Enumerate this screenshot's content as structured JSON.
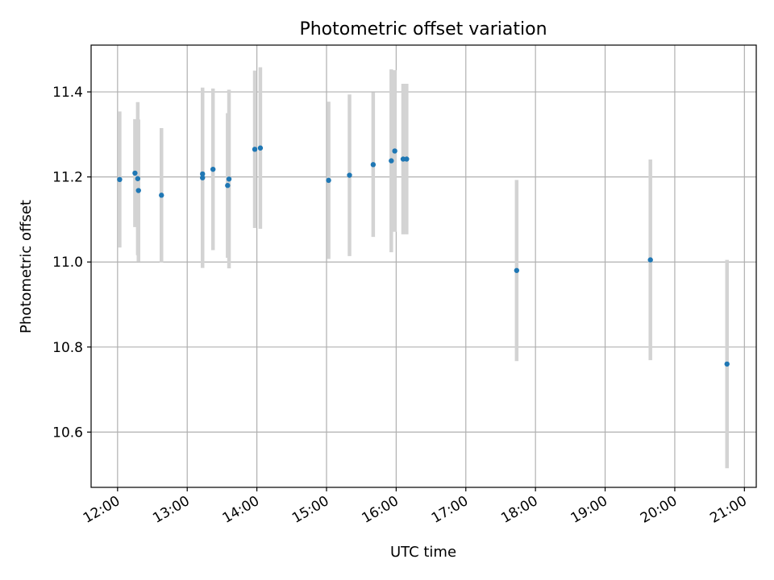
{
  "chart_data": {
    "type": "scatter",
    "title": "Photometric offset variation",
    "xlabel": "UTC time",
    "ylabel": "Photometric offset",
    "x_unit": "hours UTC",
    "xlim": [
      11.62,
      21.17
    ],
    "ylim": [
      10.47,
      11.51
    ],
    "x_ticks": [
      12,
      13,
      14,
      15,
      16,
      17,
      18,
      19,
      20,
      21
    ],
    "x_tick_labels": [
      "12:00",
      "13:00",
      "14:00",
      "15:00",
      "16:00",
      "17:00",
      "18:00",
      "19:00",
      "20:00",
      "21:00"
    ],
    "y_ticks": [
      10.6,
      10.8,
      11.0,
      11.2,
      11.4
    ],
    "y_tick_labels": [
      "10.6",
      "10.8",
      "11.0",
      "11.2",
      "11.4"
    ],
    "grid": true,
    "point_color": "#1f77b4",
    "errorbar_color": "#d3d3d3",
    "points": [
      {
        "x": 12.03,
        "y": 11.194,
        "err": 0.16
      },
      {
        "x": 12.25,
        "y": 11.209,
        "err": 0.127
      },
      {
        "x": 12.29,
        "y": 11.196,
        "err": 0.18
      },
      {
        "x": 12.3,
        "y": 11.168,
        "err": 0.167
      },
      {
        "x": 12.63,
        "y": 11.157,
        "err": 0.158
      },
      {
        "x": 13.22,
        "y": 11.198,
        "err": 0.212
      },
      {
        "x": 13.22,
        "y": 11.207,
        "err": 0.2
      },
      {
        "x": 13.37,
        "y": 11.218,
        "err": 0.19
      },
      {
        "x": 13.58,
        "y": 11.18,
        "err": 0.17
      },
      {
        "x": 13.6,
        "y": 11.195,
        "err": 0.21
      },
      {
        "x": 13.97,
        "y": 11.265,
        "err": 0.185
      },
      {
        "x": 14.05,
        "y": 11.268,
        "err": 0.19
      },
      {
        "x": 15.03,
        "y": 11.192,
        "err": 0.185
      },
      {
        "x": 15.33,
        "y": 11.204,
        "err": 0.19
      },
      {
        "x": 15.67,
        "y": 11.229,
        "err": 0.17
      },
      {
        "x": 15.93,
        "y": 11.238,
        "err": 0.215
      },
      {
        "x": 15.98,
        "y": 11.261,
        "err": 0.19
      },
      {
        "x": 16.1,
        "y": 11.242,
        "err": 0.177
      },
      {
        "x": 16.15,
        "y": 11.242,
        "err": 0.177
      },
      {
        "x": 17.73,
        "y": 10.98,
        "err": 0.213
      },
      {
        "x": 19.65,
        "y": 11.005,
        "err": 0.236
      },
      {
        "x": 20.75,
        "y": 10.76,
        "err": 0.245
      }
    ]
  }
}
